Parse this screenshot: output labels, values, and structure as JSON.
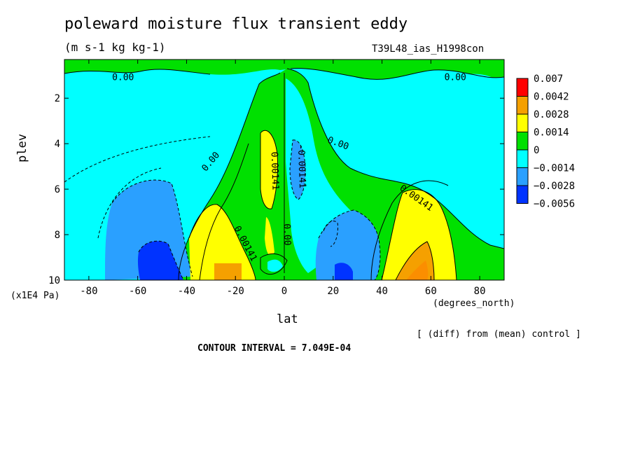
{
  "title": "poleward moisture flux transient eddy",
  "units": "(m s-1 kg kg-1)",
  "run_id": "T39L48_ias_H1998con",
  "footer_note": "[ (diff) from (mean) control ]",
  "contour_interval": "CONTOUR INTERVAL = 7.049E-04",
  "chart_data": {
    "type": "heatmap",
    "xlabel": "lat",
    "xunit": "(degrees_north)",
    "ylabel": "plev",
    "yunit": "(x1E4 Pa)",
    "xlim": [
      -90,
      90
    ],
    "ylim": [
      10,
      0.3
    ],
    "y_inverted": true,
    "x_ticks": [
      -80,
      -60,
      -40,
      -20,
      0,
      20,
      40,
      60,
      80
    ],
    "x_tick_labels": [
      "-80",
      "-60",
      "-40",
      "-20",
      "0",
      "20",
      "40",
      "60",
      "80"
    ],
    "y_ticks": [
      2,
      4,
      6,
      8,
      10
    ],
    "y_tick_labels": [
      "2",
      "4",
      "6",
      "8",
      "10"
    ],
    "colorbar": {
      "labels": [
        "0.007",
        "0.0042",
        "0.0028",
        "0.0014",
        "0",
        "−0.0014",
        "−0.0028",
        "−0.0056"
      ],
      "colors": [
        "#ff0000",
        "#f5a000",
        "#ffff00",
        "#00e000",
        "#00ffff",
        "#2aa0ff",
        "#0033ff"
      ]
    },
    "contour_labels": [
      {
        "text": "0.00",
        "lat": -66,
        "plev": 1.1,
        "angle": 0
      },
      {
        "text": "0.00",
        "lat": 70,
        "plev": 1.1,
        "angle": 0
      },
      {
        "text": "0.00",
        "lat": -30,
        "plev": 4.8,
        "angle": -50
      },
      {
        "text": "0.00",
        "lat": 22,
        "plev": 4.0,
        "angle": 20
      },
      {
        "text": "0.00141",
        "lat": -4,
        "plev": 5.2,
        "angle": 88
      },
      {
        "text": "-0.00141",
        "lat": 7,
        "plev": 5.0,
        "angle": 88
      },
      {
        "text": "0.00141",
        "lat": 54,
        "plev": 6.4,
        "angle": 35
      },
      {
        "text": "0.00141",
        "lat": -16,
        "plev": 8.4,
        "angle": 62
      },
      {
        "text": "0.00",
        "lat": 1,
        "plev": 8.0,
        "angle": 88
      }
    ],
    "fields": [
      {
        "level": "-0.0014",
        "note": "bulk of domain, stratosphere and polar troposphere"
      },
      {
        "level": "0",
        "note": "central tropical column, upper layer bands, high-latitude outer zones"
      },
      {
        "level": "-0.0028",
        "note": "southern and northern mid-latitude lower troposphere, tropical core near 0-10N"
      },
      {
        "level": "-0.0056",
        "note": "southern lower troposphere near 55S"
      },
      {
        "level": "0.0014",
        "note": "subtropical lower troposphere both hemispheres, upper tropical tongue near 4S"
      },
      {
        "level": "0.0028",
        "note": "near-surface 25S and 50N"
      },
      {
        "level": "0.0042",
        "note": "small near-surface core near 50N"
      }
    ]
  }
}
